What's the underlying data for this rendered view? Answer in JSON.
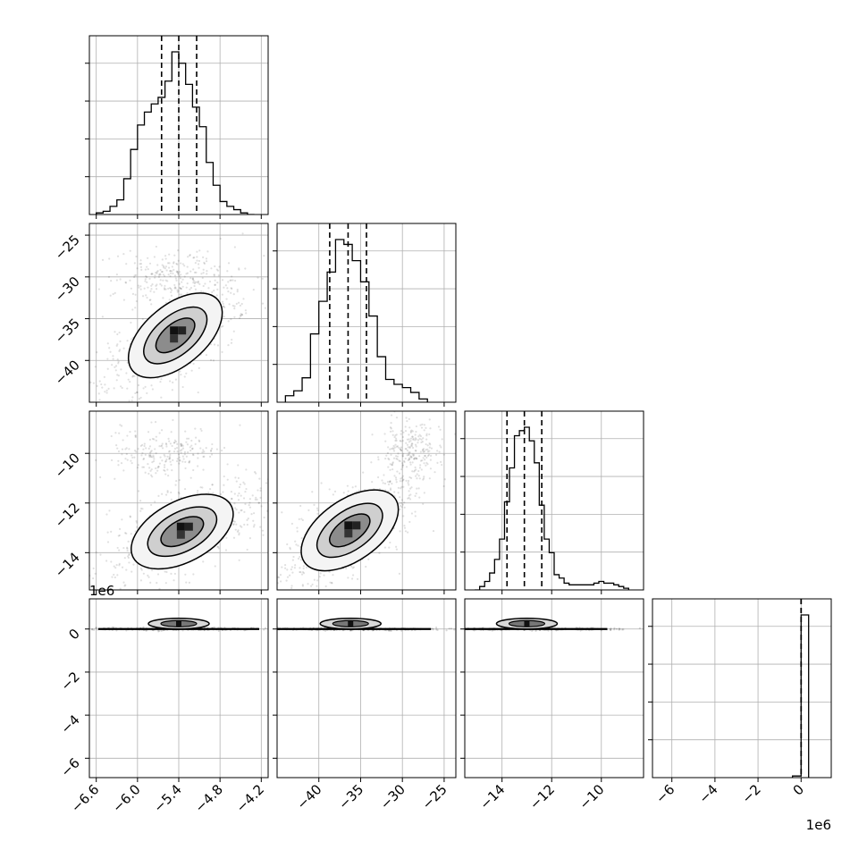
{
  "chart_data": {
    "type": "corner",
    "title": "",
    "parameters": [
      {
        "range": [
          -6.7,
          -4.1
        ],
        "ticks": [
          -6.6,
          -6.0,
          -5.4,
          -4.8,
          -4.2
        ],
        "tick_labels": [
          "−6.6",
          "−6.0",
          "−5.4",
          "−4.8",
          "−4.2"
        ],
        "quantiles": [
          -5.65,
          -5.4,
          -5.14
        ]
      },
      {
        "range": [
          -45.0,
          -23.6
        ],
        "ticks": [
          -40,
          -35,
          -30,
          -25
        ],
        "tick_labels": [
          "−40",
          "−35",
          "−30",
          "−25"
        ],
        "quantiles": [
          -38.7,
          -36.5,
          -34.3
        ]
      },
      {
        "range": [
          -15.5,
          -8.3
        ],
        "ticks": [
          -14,
          -12,
          -10
        ],
        "tick_labels": [
          "−14",
          "−12",
          "−10"
        ],
        "quantiles": [
          -13.8,
          -13.1,
          -12.4
        ]
      },
      {
        "range": [
          -6.9,
          1.4
        ],
        "ticks": [
          -6,
          -4,
          -2,
          0
        ],
        "tick_labels": [
          "−6",
          "−4",
          "−2",
          "0"
        ],
        "quantiles": [
          0.0,
          0.0,
          0.0
        ],
        "offset_label": "1e6"
      }
    ],
    "y_axis_offset_label": "1e6",
    "histograms": [
      {
        "edges": [
          -6.6,
          -6.5,
          -6.4,
          -6.3,
          -6.2,
          -6.1,
          -6.0,
          -5.9,
          -5.8,
          -5.7,
          -5.6,
          -5.5,
          -5.4,
          -5.3,
          -5.2,
          -5.1,
          -5.0,
          -4.9,
          -4.8,
          -4.7,
          -4.6,
          -4.5,
          -4.4,
          -4.3
        ],
        "counts": [
          1,
          2,
          5,
          9,
          22,
          40,
          55,
          63,
          68,
          72,
          82,
          100,
          93,
          80,
          66,
          54,
          32,
          18,
          8,
          5,
          3,
          1,
          0
        ]
      },
      {
        "edges": [
          -44.0,
          -43.0,
          -42.0,
          -41.0,
          -40.0,
          -39.0,
          -38.0,
          -37.0,
          -36.0,
          -35.0,
          -34.0,
          -33.0,
          -32.0,
          -31.0,
          -30.0,
          -29.0,
          -28.0,
          -27.0
        ],
        "counts": [
          4,
          7,
          15,
          42,
          62,
          80,
          100,
          97,
          87,
          74,
          53,
          28,
          14,
          11,
          9,
          6,
          2
        ]
      },
      {
        "edges": [
          -15.1,
          -14.9,
          -14.7,
          -14.5,
          -14.3,
          -14.1,
          -13.9,
          -13.7,
          -13.5,
          -13.3,
          -13.1,
          -12.9,
          -12.7,
          -12.5,
          -12.3,
          -12.1,
          -11.9,
          -11.7,
          -11.5,
          -11.3,
          -11.1,
          -10.9,
          -10.7,
          -10.5,
          -10.3,
          -10.1,
          -9.9,
          -9.7,
          -9.5,
          -9.3,
          -9.1,
          -8.9
        ],
        "counts": [
          0,
          2,
          5,
          10,
          18,
          30,
          52,
          72,
          91,
          94,
          96,
          88,
          75,
          50,
          30,
          22,
          9,
          7,
          4,
          3,
          3,
          3,
          3,
          3,
          4,
          5,
          4,
          4,
          3,
          2,
          1
        ]
      },
      {
        "edges": [
          -0.4,
          0.0,
          0.35
        ],
        "counts": [
          1,
          100
        ]
      }
    ],
    "cores": [
      {
        "row": 1,
        "col": 0,
        "cx": -5.45,
        "cy": -37.0,
        "slope": 0.6,
        "spreads": [
          1.2,
          0.55
        ],
        "extra_cluster": {
          "cx": -5.55,
          "cy": -29.8,
          "rx": 0.55,
          "ry": 2.2
        }
      },
      {
        "row": 2,
        "col": 0,
        "cx": -5.35,
        "cy": -13.15,
        "slope": 0.35,
        "spreads": [
          1.25,
          0.55
        ],
        "extra_cluster": {
          "cx": -5.6,
          "cy": -10.0,
          "rx": 0.55,
          "ry": 0.75
        }
      },
      {
        "row": 2,
        "col": 1,
        "cx": -36.3,
        "cy": -13.1,
        "slope": 0.5,
        "spreads": [
          1.25,
          0.55
        ],
        "extra_cluster": {
          "cx": -29.2,
          "cy": -9.8,
          "rx": 2.2,
          "ry": 0.9
        }
      },
      {
        "row": 3,
        "col": 0,
        "cx": -5.4,
        "cy": 0.0,
        "slope": 0.0,
        "spreads": [
          1.0,
          0.0
        ]
      },
      {
        "row": 3,
        "col": 1,
        "cx": -36.2,
        "cy": 0.0,
        "slope": 0.0,
        "spreads": [
          1.0,
          0.0
        ]
      },
      {
        "row": 3,
        "col": 2,
        "cx": -13.0,
        "cy": 0.0,
        "slope": 0.0,
        "spreads": [
          1.0,
          0.0
        ]
      }
    ],
    "grid": true,
    "legend": "none"
  }
}
